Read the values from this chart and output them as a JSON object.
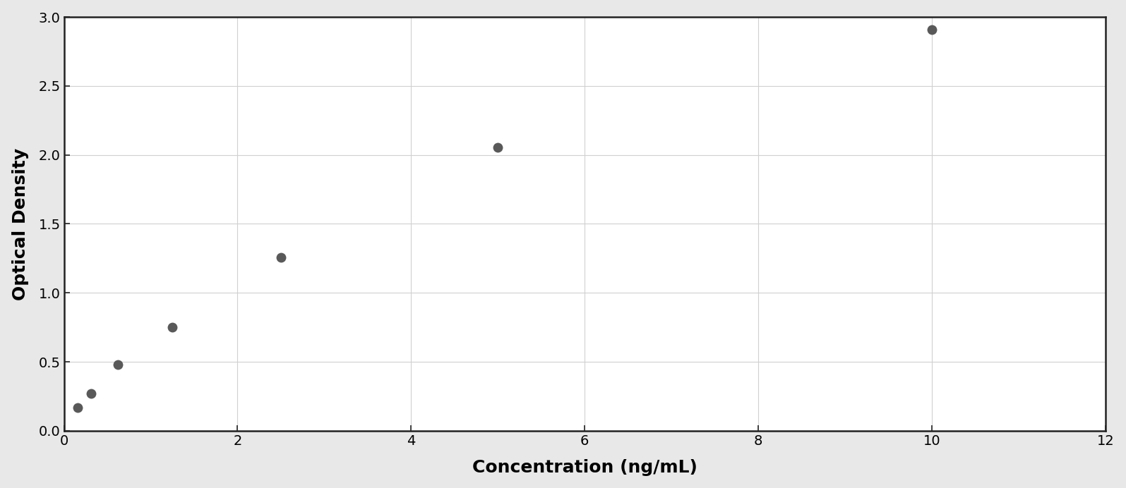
{
  "x_data": [
    0.156,
    0.313,
    0.625,
    1.25,
    2.5,
    5.0,
    10.0
  ],
  "y_data": [
    0.17,
    0.27,
    0.48,
    0.75,
    1.255,
    2.055,
    2.91
  ],
  "xlabel": "Concentration (ng/mL)",
  "ylabel": "Optical Density",
  "xlim": [
    0,
    12
  ],
  "ylim": [
    0,
    3.0
  ],
  "xticks": [
    0,
    2,
    4,
    6,
    8,
    10,
    12
  ],
  "yticks": [
    0,
    0.5,
    1.0,
    1.5,
    2.0,
    2.5,
    3.0
  ],
  "marker_color": "#595959",
  "line_color": "#595959",
  "grid_color": "#d0d0d0",
  "background_color": "#ffffff",
  "plot_bg_color": "#ffffff",
  "outer_bg_color": "#e8e8e8",
  "marker_size": 10,
  "line_width": 1.8,
  "xlabel_fontsize": 18,
  "ylabel_fontsize": 18,
  "tick_fontsize": 14,
  "xlabel_fontweight": "bold",
  "ylabel_fontweight": "bold"
}
